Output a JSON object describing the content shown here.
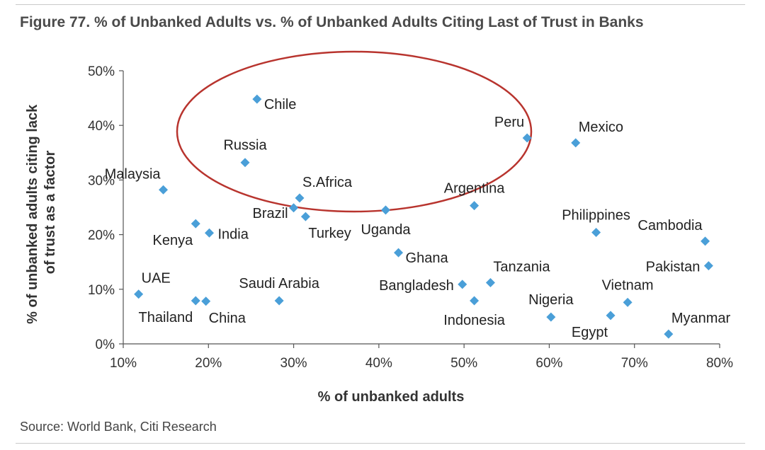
{
  "title": "Figure 77. % of Unbanked Adults vs. % of Unbanked Adults Citing Last of Trust in Banks",
  "source": "Source: World Bank, Citi Research",
  "chart_data": {
    "type": "scatter",
    "title": "Figure 77. % of Unbanked Adults vs. % of Unbanked Adults Citing Last of Trust in Banks",
    "xlabel": "% of unbanked adults",
    "ylabel_lines": [
      "% of unbanked adults citing lack",
      "of trust as a factor"
    ],
    "xlim": [
      10,
      80
    ],
    "ylim": [
      0,
      50
    ],
    "xticks": [
      10,
      20,
      30,
      40,
      50,
      60,
      70,
      80
    ],
    "yticks": [
      0,
      10,
      20,
      30,
      40,
      50
    ],
    "xtick_labels": [
      "10%",
      "20%",
      "30%",
      "40%",
      "50%",
      "60%",
      "70%",
      "80%"
    ],
    "ytick_labels": [
      "0%",
      "10%",
      "20%",
      "30%",
      "40%",
      "50%"
    ],
    "grid": false,
    "marker_color": "#4a9fd8",
    "highlight_color": "#b8342e",
    "points": [
      {
        "label": "Chile",
        "x": 25.7,
        "y": 44.8,
        "pos": "right-below"
      },
      {
        "label": "Peru",
        "x": 57.4,
        "y": 37.7,
        "pos": "above-left"
      },
      {
        "label": "Mexico",
        "x": 63.1,
        "y": 36.8,
        "pos": "above-right"
      },
      {
        "label": "Russia",
        "x": 24.3,
        "y": 33.2,
        "pos": "above"
      },
      {
        "label": "Malaysia",
        "x": 14.7,
        "y": 28.2,
        "pos": "above-left"
      },
      {
        "label": "S.Africa",
        "x": 30.7,
        "y": 26.7,
        "pos": "above-right"
      },
      {
        "label": "Argentina",
        "x": 51.2,
        "y": 25.3,
        "pos": "above"
      },
      {
        "label": "Brazil",
        "x": 30.0,
        "y": 24.9,
        "pos": "left-below"
      },
      {
        "label": "Uganda",
        "x": 40.8,
        "y": 24.5,
        "pos": "below"
      },
      {
        "label": "Turkey",
        "x": 31.4,
        "y": 23.3,
        "pos": "below-right"
      },
      {
        "label": "Kenya",
        "x": 18.5,
        "y": 22.0,
        "pos": "below-left"
      },
      {
        "label": "India",
        "x": 20.1,
        "y": 20.3,
        "pos": "right"
      },
      {
        "label": "Philippines",
        "x": 65.5,
        "y": 20.4,
        "pos": "above"
      },
      {
        "label": "Cambodia",
        "x": 78.3,
        "y": 18.8,
        "pos": "above-left"
      },
      {
        "label": "Ghana",
        "x": 42.3,
        "y": 16.7,
        "pos": "right-below"
      },
      {
        "label": "Pakistan",
        "x": 78.7,
        "y": 14.3,
        "pos": "left"
      },
      {
        "label": "Tanzania",
        "x": 53.1,
        "y": 11.2,
        "pos": "above-right"
      },
      {
        "label": "Bangladesh",
        "x": 49.8,
        "y": 10.9,
        "pos": "left"
      },
      {
        "label": "UAE",
        "x": 11.8,
        "y": 9.1,
        "pos": "above-right"
      },
      {
        "label": "Saudi Arabia",
        "x": 28.3,
        "y": 7.9,
        "pos": "above"
      },
      {
        "label": "Indonesia",
        "x": 51.2,
        "y": 7.9,
        "pos": "below"
      },
      {
        "label": "Thailand",
        "x": 18.5,
        "y": 7.9,
        "pos": "below-left"
      },
      {
        "label": "China",
        "x": 19.7,
        "y": 7.8,
        "pos": "below-right"
      },
      {
        "label": "Vietnam",
        "x": 69.2,
        "y": 7.6,
        "pos": "above"
      },
      {
        "label": "Egypt",
        "x": 67.2,
        "y": 5.2,
        "pos": "below-left"
      },
      {
        "label": "Nigeria",
        "x": 60.2,
        "y": 4.9,
        "pos": "above"
      },
      {
        "label": "Myanmar",
        "x": 74.0,
        "y": 1.8,
        "pos": "above-right"
      }
    ]
  }
}
